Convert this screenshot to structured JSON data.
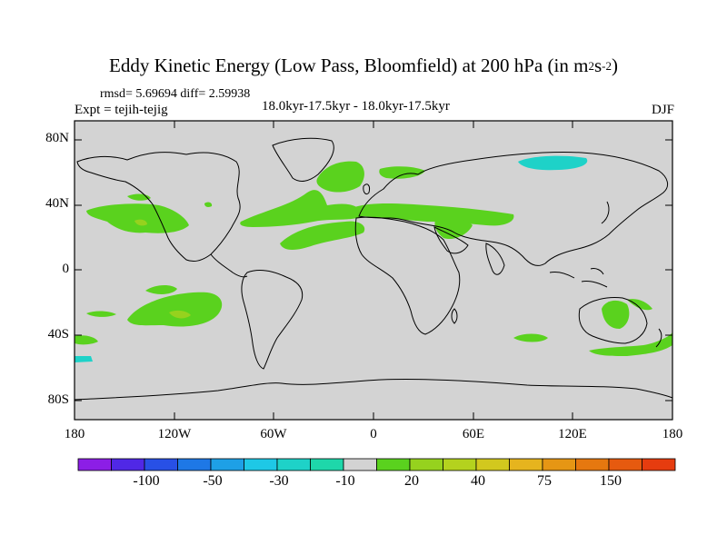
{
  "title": {
    "main": "Eddy Kinetic Energy (Low Pass, Bloomfield) at 200 hPa (in m",
    "sup1": "2",
    "mid": "s",
    "sup2": "-2",
    "end": ")"
  },
  "stats": "rmsd= 5.69694 diff= 2.59938",
  "experiment": "Expt = tejih-tejig",
  "period": "18.0kyr-17.5kyr - 18.0kyr-17.5kyr",
  "season": "DJF",
  "map": {
    "background_color": "#d3d3d3",
    "lat_labels": [
      "80N",
      "40N",
      "0",
      "40S",
      "80S"
    ],
    "lon_labels": [
      "180",
      "120W",
      "60W",
      "0",
      "60E",
      "120E",
      "180"
    ]
  },
  "colorbar": {
    "colors": [
      "#8c1ee6",
      "#5028e6",
      "#2850e6",
      "#1e78e6",
      "#1ea0e6",
      "#1ec8e6",
      "#1ed2c8",
      "#1ed7aa",
      "#d3d3d3",
      "#5ad21e",
      "#96d21e",
      "#b4d21e",
      "#d2c81e",
      "#e6b41e",
      "#e69614",
      "#e6780f",
      "#e65a0f",
      "#e63c0f"
    ],
    "labels": [
      "-100",
      "-50",
      "-30",
      "-10",
      "20",
      "40",
      "75",
      "150"
    ]
  }
}
